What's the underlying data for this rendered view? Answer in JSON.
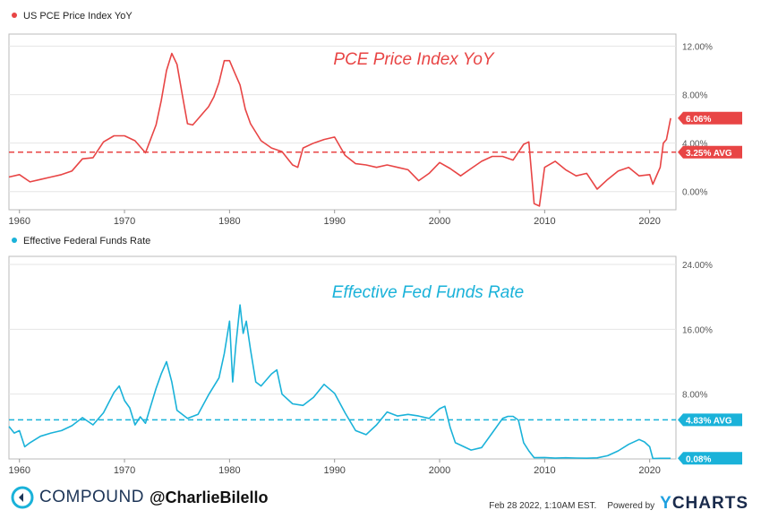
{
  "chart_data": [
    {
      "type": "line",
      "legend": "US PCE Price Index YoY",
      "title": "PCE Price Index YoY",
      "color": "#e84545",
      "x_ticks": [
        "1960",
        "1970",
        "1980",
        "1990",
        "2000",
        "2010",
        "2020"
      ],
      "y_ticks": [
        "0.00%",
        "4.00%",
        "8.00%",
        "12.00%"
      ],
      "ylim": [
        -1.5,
        13
      ],
      "xlim": [
        1959,
        2022.5
      ],
      "average": 3.25,
      "average_label": "3.25% AVG",
      "last_label": "6.06%",
      "last_value": 6.06,
      "x": [
        1959.0,
        1960.0,
        1961.0,
        1962.0,
        1963.0,
        1964.0,
        1965.0,
        1966.0,
        1967.0,
        1968.0,
        1969.0,
        1970.0,
        1971.0,
        1972.0,
        1973.0,
        1973.5,
        1974.0,
        1974.5,
        1975.0,
        1975.5,
        1976.0,
        1976.5,
        1977.0,
        1977.5,
        1978.0,
        1978.5,
        1979.0,
        1979.5,
        1980.0,
        1980.5,
        1981.0,
        1981.5,
        1982.0,
        1983.0,
        1984.0,
        1985.0,
        1986.0,
        1986.5,
        1987.0,
        1988.0,
        1989.0,
        1990.0,
        1991.0,
        1992.0,
        1993.0,
        1994.0,
        1995.0,
        1996.0,
        1997.0,
        1998.0,
        1999.0,
        2000.0,
        2001.0,
        2002.0,
        2003.0,
        2004.0,
        2005.0,
        2006.0,
        2007.0,
        2008.0,
        2008.5,
        2009.0,
        2009.5,
        2010.0,
        2011.0,
        2012.0,
        2013.0,
        2014.0,
        2015.0,
        2016.0,
        2017.0,
        2018.0,
        2019.0,
        2020.0,
        2020.3,
        2020.6,
        2021.0,
        2021.3,
        2021.6,
        2022.0
      ],
      "values": [
        1.2,
        1.4,
        0.8,
        1.0,
        1.2,
        1.4,
        1.7,
        2.7,
        2.8,
        4.1,
        4.6,
        4.6,
        4.2,
        3.2,
        5.5,
        7.5,
        10.0,
        11.4,
        10.5,
        8.0,
        5.6,
        5.5,
        6.0,
        6.5,
        7.0,
        7.8,
        9.0,
        10.8,
        10.8,
        9.8,
        8.8,
        6.8,
        5.6,
        4.2,
        3.6,
        3.3,
        2.2,
        2.0,
        3.6,
        4.0,
        4.3,
        4.5,
        3.0,
        2.3,
        2.2,
        2.0,
        2.2,
        2.0,
        1.8,
        0.9,
        1.5,
        2.4,
        1.9,
        1.3,
        1.9,
        2.5,
        2.9,
        2.9,
        2.6,
        3.9,
        4.1,
        -1.0,
        -1.2,
        2.0,
        2.5,
        1.8,
        1.3,
        1.5,
        0.2,
        1.0,
        1.7,
        2.0,
        1.3,
        1.4,
        0.6,
        1.2,
        2.0,
        4.0,
        4.3,
        6.06
      ]
    },
    {
      "type": "line",
      "legend": "Effective Federal Funds Rate",
      "title": "Effective Fed Funds Rate",
      "color": "#1ab2d9",
      "x_ticks": [
        "1960",
        "1970",
        "1980",
        "1990",
        "2000",
        "2010",
        "2020"
      ],
      "y_ticks": [
        "8.00%",
        "16.00%",
        "24.00%"
      ],
      "ylim": [
        0,
        25
      ],
      "xlim": [
        1959,
        2022.5
      ],
      "average": 4.83,
      "average_label": "4.83% AVG",
      "last_label": "0.08%",
      "last_value": 0.08,
      "x": [
        1959.0,
        1959.5,
        1960.0,
        1960.5,
        1961.0,
        1962.0,
        1963.0,
        1964.0,
        1965.0,
        1966.0,
        1967.0,
        1968.0,
        1969.0,
        1969.5,
        1970.0,
        1970.5,
        1971.0,
        1971.5,
        1972.0,
        1973.0,
        1973.5,
        1974.0,
        1974.5,
        1975.0,
        1976.0,
        1977.0,
        1978.0,
        1979.0,
        1979.5,
        1980.0,
        1980.3,
        1980.6,
        1981.0,
        1981.3,
        1981.6,
        1982.0,
        1982.5,
        1983.0,
        1984.0,
        1984.5,
        1985.0,
        1986.0,
        1987.0,
        1988.0,
        1989.0,
        1990.0,
        1991.0,
        1992.0,
        1993.0,
        1994.0,
        1995.0,
        1996.0,
        1997.0,
        1998.0,
        1999.0,
        2000.0,
        2000.5,
        2001.0,
        2001.5,
        2002.0,
        2003.0,
        2004.0,
        2005.0,
        2006.0,
        2006.5,
        2007.0,
        2007.5,
        2008.0,
        2008.5,
        2009.0,
        2010.0,
        2011.0,
        2012.0,
        2013.0,
        2014.0,
        2015.0,
        2016.0,
        2017.0,
        2018.0,
        2019.0,
        2019.5,
        2020.0,
        2020.3,
        2021.0,
        2022.0
      ],
      "values": [
        4.0,
        3.2,
        3.5,
        1.5,
        2.0,
        2.8,
        3.2,
        3.5,
        4.1,
        5.1,
        4.2,
        5.7,
        8.2,
        9.0,
        7.2,
        6.3,
        4.2,
        5.2,
        4.4,
        8.7,
        10.5,
        12.0,
        9.5,
        6.0,
        5.0,
        5.5,
        7.9,
        10.0,
        13.0,
        17.0,
        9.5,
        14.0,
        19.0,
        15.5,
        17.0,
        13.5,
        9.5,
        9.0,
        10.5,
        11.0,
        8.0,
        6.8,
        6.6,
        7.6,
        9.2,
        8.1,
        5.7,
        3.5,
        3.0,
        4.2,
        5.8,
        5.3,
        5.5,
        5.3,
        5.0,
        6.2,
        6.5,
        3.9,
        2.0,
        1.7,
        1.1,
        1.4,
        3.2,
        5.0,
        5.25,
        5.25,
        4.8,
        2.0,
        1.0,
        0.15,
        0.18,
        0.1,
        0.14,
        0.11,
        0.09,
        0.13,
        0.4,
        1.0,
        1.8,
        2.4,
        2.1,
        1.5,
        0.05,
        0.08,
        0.08
      ]
    }
  ],
  "footer": {
    "brand_name": "COMPOUND",
    "handle": "@CharlieBilello",
    "date_text": "Feb 28 2022, 1:10AM EST.",
    "powered_text": "Powered by",
    "ycharts_y": "Y",
    "ycharts_rest": "CHARTS"
  }
}
